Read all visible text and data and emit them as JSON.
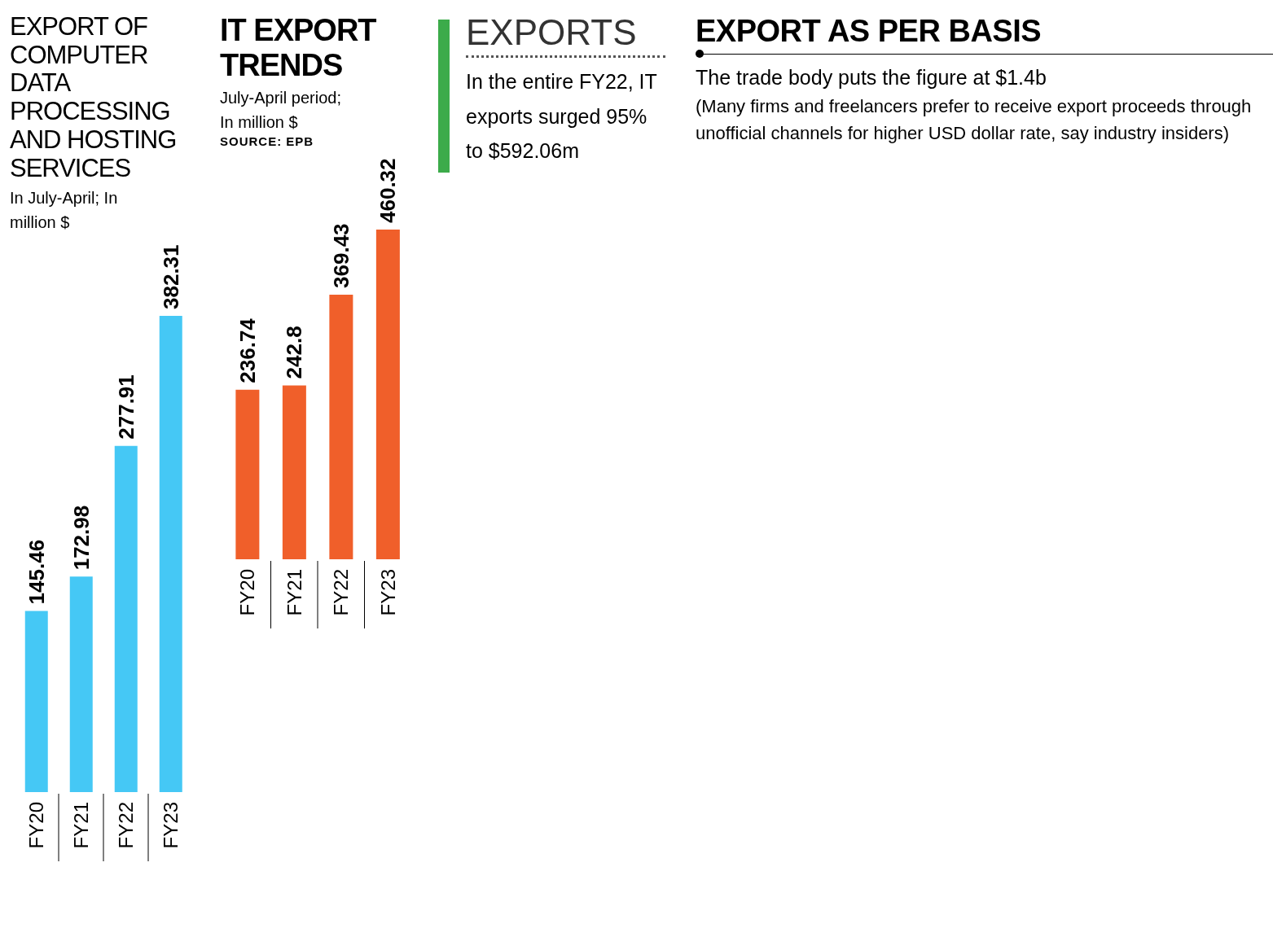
{
  "chart_data": [
    {
      "type": "bar",
      "title": "EXPORT OF COMPUTER DATA PROCESSING AND HOSTING SERVICES",
      "subtitle": "In July-April; In million $",
      "categories": [
        "FY20",
        "FY21",
        "FY22",
        "FY23"
      ],
      "values": [
        145.46,
        172.98,
        277.91,
        382.31
      ],
      "color": "#45c8f5",
      "data_labels": true
    },
    {
      "type": "bar",
      "title": "IT EXPORT TRENDS",
      "subtitle": "July-April period; In million $",
      "annotations": [
        "SOURCE: EPB"
      ],
      "categories": [
        "FY20",
        "FY21",
        "FY22",
        "FY23"
      ],
      "values": [
        236.74,
        242.8,
        369.43,
        460.32
      ],
      "color": "#f05f2a",
      "data_labels": true
    },
    {
      "type": "other",
      "title": "EXPORTS",
      "annotations": [
        "In the entire FY22, IT exports surged 95% to $592.06m"
      ]
    },
    {
      "type": "other",
      "title": "EXPORT AS PER BASIS",
      "annotations": [
        "The trade body puts the figure at $1.4b",
        "(Many firms and freelancers prefer to receive export proceeds through unofficial channels for higher USD dollar rate, say industry insiders)"
      ]
    }
  ]
}
